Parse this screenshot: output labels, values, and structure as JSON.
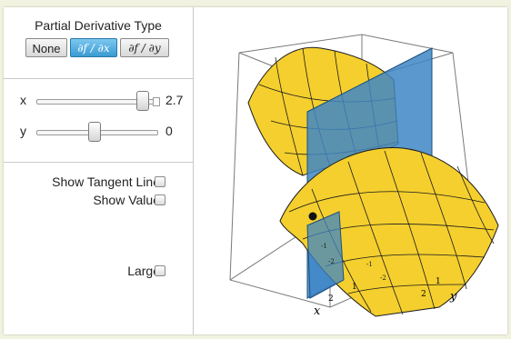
{
  "controls": {
    "title": "Partial Derivative Type",
    "buttons": [
      "None",
      "∂f / ∂x",
      "∂f / ∂y"
    ],
    "selected": "∂f / ∂x",
    "sliders": [
      {
        "name": "x",
        "value": "2.7"
      },
      {
        "name": "y",
        "value": "0"
      }
    ],
    "show_tangent_line": "Show Tangent Line",
    "show_value": "Show Value",
    "large": "Large"
  },
  "plot": {
    "axis_x": "x",
    "axis_y": "y",
    "ticks_x": [
      "2",
      "1"
    ],
    "ticks_y": [
      "2",
      "1"
    ],
    "ticks_neg": [
      "-1",
      "-2",
      "-1",
      "-2"
    ],
    "colors": {
      "surface": "#f4cf2e",
      "surface_dark": "#d9a51a",
      "plane": "#3d86c6",
      "point": "#111111"
    }
  }
}
